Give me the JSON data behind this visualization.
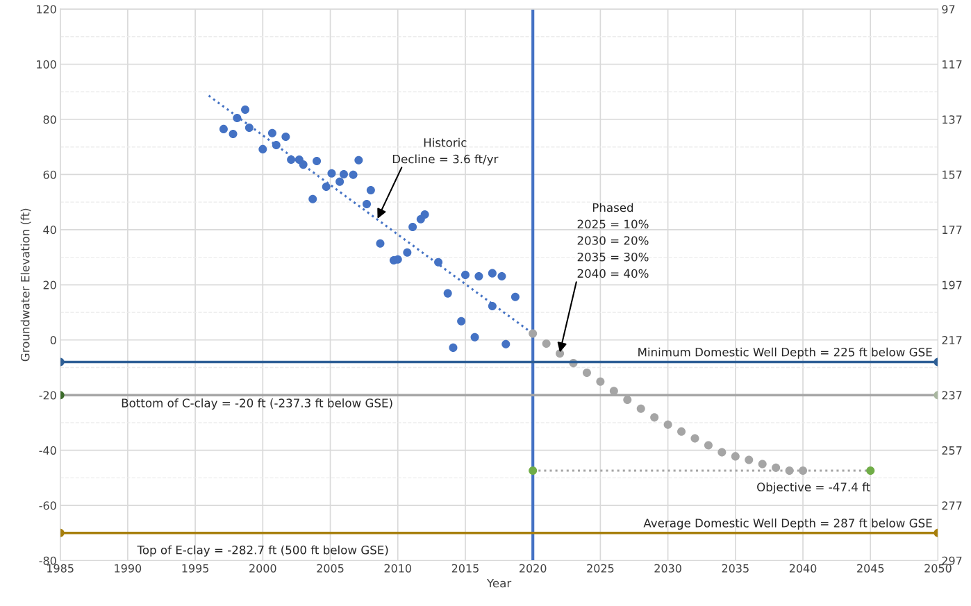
{
  "chart_data": {
    "type": "scatter",
    "xlabel": "Year",
    "ylabel": "Groundwater Elevation (ft)",
    "xlim": [
      1985,
      2050
    ],
    "xticks": [
      1985,
      1990,
      1995,
      2000,
      2005,
      2010,
      2015,
      2020,
      2025,
      2030,
      2035,
      2040,
      2045,
      2050
    ],
    "ylim": [
      -80,
      120
    ],
    "yticks": [
      -80,
      -60,
      -40,
      -20,
      0,
      20,
      40,
      60,
      80,
      100,
      120
    ],
    "y2lim": [
      297,
      97
    ],
    "y2ticks": [
      97,
      117,
      137,
      157,
      177,
      197,
      217,
      237,
      257,
      277,
      297
    ],
    "grid": true,
    "legend": false,
    "series": [
      {
        "color": "#4472c4",
        "marker": "circle",
        "x": [
          1997.1,
          1997.8,
          1998.1,
          1998.7,
          1999.0,
          2000.0,
          2000.7,
          2001.0,
          2001.7,
          2002.1,
          2002.7,
          2003.0,
          2003.7,
          2004.0,
          2004.7,
          2005.1,
          2005.7,
          2006.0,
          2006.7,
          2007.1,
          2007.7,
          2008.0,
          2008.7,
          2009.7,
          2010.0,
          2010.7,
          2011.1,
          2011.7,
          2012.0,
          2013.0,
          2013.7,
          2014.1,
          2014.7,
          2015.0,
          2015.7,
          2016.0,
          2017.0,
          2017.0,
          2017.7,
          2018.0,
          2018.7
        ],
        "values": [
          76.5,
          74.7,
          80.5,
          83.5,
          77.0,
          69.2,
          75.0,
          70.7,
          73.7,
          65.4,
          65.4,
          63.6,
          51.1,
          64.9,
          55.6,
          60.4,
          57.4,
          60.1,
          59.9,
          65.2,
          49.3,
          54.3,
          35.0,
          28.9,
          29.2,
          31.7,
          41.0,
          43.8,
          45.5,
          28.2,
          16.9,
          -2.8,
          6.8,
          23.6,
          1.0,
          23.1,
          12.3,
          24.2,
          23.1,
          -1.5,
          15.6
        ]
      },
      {
        "type": "line",
        "color": "#4472c4",
        "line_style": "dotted",
        "x": [
          1996,
          2020
        ],
        "values": [
          88.6,
          2.3
        ]
      },
      {
        "color": "#a5a5a5",
        "marker": "circle",
        "x": [
          2020,
          2021,
          2022,
          2023,
          2024,
          2025,
          2026,
          2027,
          2028,
          2029,
          2030,
          2031,
          2032,
          2033,
          2034,
          2035,
          2036,
          2037,
          2038,
          2039,
          2040
        ],
        "values": [
          2.3,
          -1.3,
          -4.9,
          -8.4,
          -11.9,
          -15.1,
          -18.5,
          -21.7,
          -24.9,
          -28.1,
          -30.7,
          -33.2,
          -35.7,
          -38.2,
          -40.7,
          -42.2,
          -43.5,
          -45.0,
          -46.3,
          -47.4,
          -47.4
        ]
      },
      {
        "type": "line",
        "color": "#a5a5a5",
        "line_style": "dotted",
        "marker": "circle",
        "colors": [
          "#70ad47",
          "#70ad47"
        ],
        "x": [
          2020,
          2045
        ],
        "values": [
          -47.4,
          -47.4
        ]
      },
      {
        "type": "line",
        "name": "Minimum Domestic Well Depth = 225 ft below GSE",
        "color": "#2e5f96",
        "line_style": "solid",
        "marker": "circle",
        "x": [
          1985,
          2050
        ],
        "values": [
          -8,
          -8
        ]
      },
      {
        "type": "line",
        "name": "Bottom of C-clay = -20 ft (-237.3 ft below GSE)",
        "color": "#a5a5a5",
        "line_style": "solid",
        "marker": "circle",
        "colors": [
          "#3b6b2a",
          "#a9b7a0"
        ],
        "x": [
          1985,
          2050
        ],
        "values": [
          -20,
          -20
        ]
      },
      {
        "type": "line",
        "name": "Average Domestic Well Depth = 287 ft below GSE",
        "color": "#a77f0c",
        "line_style": "solid",
        "marker": "circle",
        "x": [
          1985,
          2050
        ],
        "values": [
          -70,
          -70
        ]
      }
    ],
    "ref_lines": [
      {
        "axis": "x",
        "value": 2020,
        "color": "#4472c4"
      }
    ],
    "annotations": [
      {
        "text": "Historic\nDecline = 3.6 ft/yr",
        "x": 2008.5,
        "y": 44
      },
      {
        "text": "Phased\n2025 = 10%\n2030 = 20%\n2035 = 30%\n2040 = 40%",
        "x": 2022,
        "y": -4.5
      },
      {
        "text": "Objective = -47.4 ft",
        "x": 2045,
        "y": -47.4
      },
      "Top of E-clay = -282.7 ft (500 ft below GSE)"
    ]
  }
}
